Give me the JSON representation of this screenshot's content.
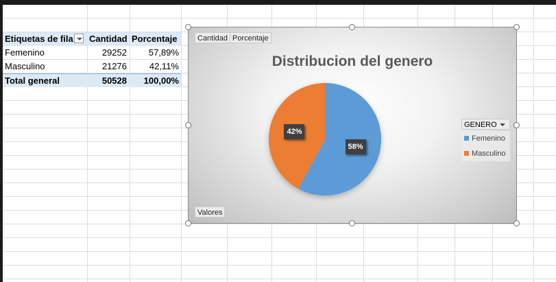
{
  "pivot": {
    "headers": [
      "Etiquetas de fila",
      "Cantidad",
      "Porcentaje"
    ],
    "rows": [
      {
        "label": "Femenino",
        "cantidad": "29252",
        "porcentaje": "57,89%"
      },
      {
        "label": "Masculino",
        "cantidad": "21276",
        "porcentaje": "42,11%"
      }
    ],
    "total": {
      "label": "Total general",
      "cantidad": "50528",
      "porcentaje": "100,00%"
    }
  },
  "chart": {
    "field_buttons": [
      "Cantidad",
      "Porcentaje"
    ],
    "values_button": "Valores",
    "legend_field": "GENERO"
  },
  "chart_data": {
    "type": "pie",
    "title": "Distribucion del genero",
    "categories": [
      "Femenino",
      "Masculino"
    ],
    "values": [
      57.89,
      42.11
    ],
    "labels": [
      "58%",
      "42%"
    ],
    "colors": [
      "#5b9bd5",
      "#ed7d31"
    ],
    "legend": "right"
  },
  "icons": {
    "filter": "filter-dropdown-icon",
    "legend": "dropdown-arrow-icon"
  }
}
